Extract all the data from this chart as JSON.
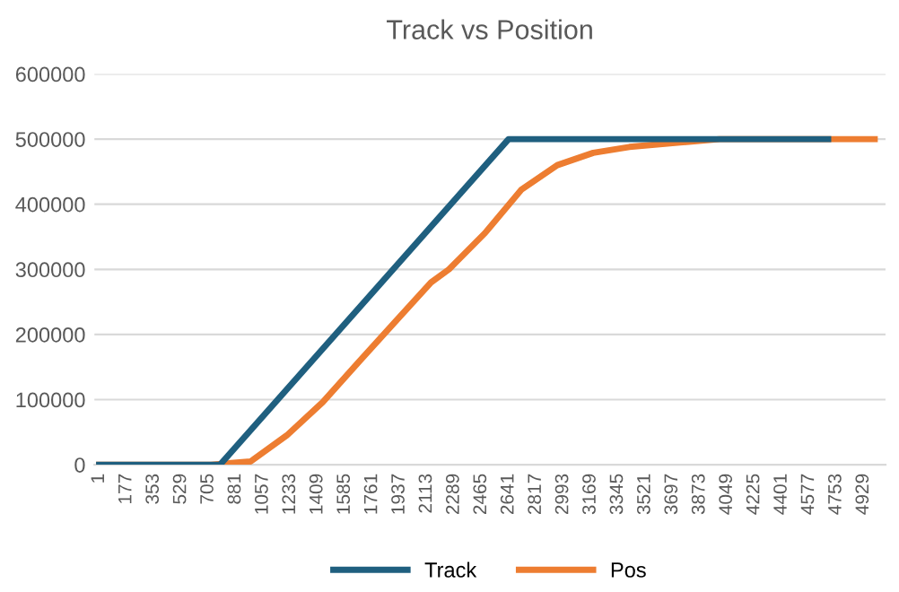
{
  "chart_data": {
    "type": "line",
    "title": "Track vs Position",
    "series": [
      {
        "name": "Track",
        "color": "#1f5f7f",
        "x": [
          1,
          780,
          2640,
          4700
        ],
        "values": [
          0,
          0,
          500000,
          500000
        ]
      },
      {
        "name": "Pos",
        "color": "#ed7d31",
        "x": [
          1,
          722,
          977,
          1210,
          1442,
          1675,
          1907,
          2140,
          2256,
          2489,
          2721,
          2954,
          3186,
          3419,
          3802,
          4000,
          5000
        ],
        "values": [
          0,
          0,
          5000,
          45000,
          96000,
          158000,
          219000,
          280000,
          300000,
          356000,
          422000,
          460000,
          479000,
          488000,
          496000,
          500000,
          500000
        ]
      }
    ],
    "xlim": [
      -30,
      5070
    ],
    "xticks": [
      1,
      177,
      353,
      529,
      705,
      881,
      1057,
      1233,
      1409,
      1585,
      1761,
      1937,
      2113,
      2289,
      2465,
      2641,
      2817,
      2993,
      3169,
      3345,
      3521,
      3697,
      3873,
      4049,
      4225,
      4401,
      4577,
      4753,
      4929
    ],
    "ylim": [
      0,
      600000
    ],
    "yticks": [
      0,
      100000,
      200000,
      300000,
      400000,
      500000,
      600000
    ],
    "grid": "y",
    "legend": "bottom",
    "marker": "none",
    "line_style": "solid"
  }
}
